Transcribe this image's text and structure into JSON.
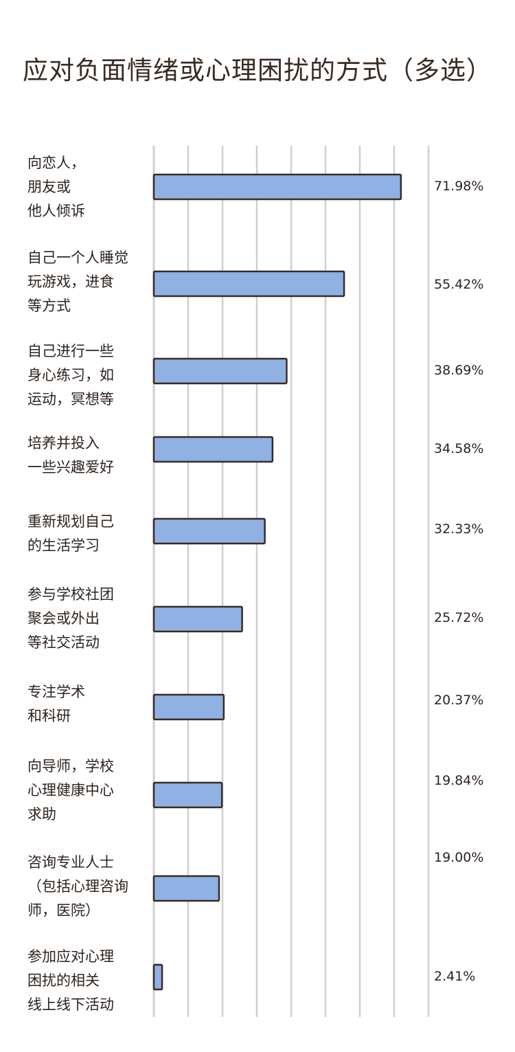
{
  "chart_data": {
    "type": "bar",
    "orientation": "horizontal",
    "title": "应对负面情绪或心理困扰的方式（多选）",
    "xlim": [
      0,
      80
    ],
    "grid": true,
    "colors": {
      "bar_fill": "#8fb1e4",
      "bar_stroke": "#3a2a22",
      "grid": "#cfcfcf",
      "text": "#2d231e"
    },
    "categories": [
      "向恋人，\n朋友或\n他人倾诉",
      "自己一个人睡觉\n玩游戏，进食\n等方式",
      "自己进行一些\n身心练习，如\n运动，冥想等",
      "培养并投入\n一些兴趣爱好",
      "重新规划自己\n的生活学习",
      "参与学校社团\n聚会或外出\n等社交活动",
      "专注学术\n和科研",
      "向导师，学校\n心理健康中心\n求助",
      "咨询专业人士\n（包括心理咨询\n师，医院）",
      "参加应对心理\n困扰的相关\n线上线下活动"
    ],
    "values": [
      71.98,
      55.42,
      38.69,
      34.58,
      32.33,
      25.72,
      20.37,
      19.84,
      19.0,
      2.41
    ],
    "value_labels": [
      "71.98%",
      "55.42%",
      "38.69%",
      "34.58%",
      "32.33%",
      "25.72%",
      "20.37%",
      "19.84%",
      "19.00%",
      "2.41%"
    ]
  }
}
